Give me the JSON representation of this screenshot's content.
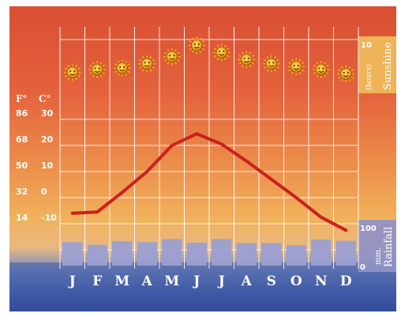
{
  "chart_data": {
    "type": "line",
    "categories": [
      "J",
      "F",
      "M",
      "A",
      "M",
      "J",
      "J",
      "A",
      "S",
      "O",
      "N",
      "D"
    ],
    "temperature": {
      "unit_fahrenheit": "F°",
      "unit_celsius": "C°",
      "fahrenheit_ticks": [
        "86",
        "68",
        "50",
        "32",
        "14"
      ],
      "celsius_ticks": [
        "30",
        "20",
        "10",
        "0",
        "-10"
      ],
      "ylim": [
        -10,
        30
      ],
      "values": [
        -6,
        -5.5,
        2,
        10,
        20,
        24.5,
        20.5,
        14,
        7,
        0,
        -7.5,
        -12.5
      ],
      "color": "#cc2020"
    },
    "sunshine": {
      "label": "Sunshine",
      "unit": "(hours)",
      "ticks": [
        "10",
        "0"
      ],
      "ylim": [
        0,
        10
      ],
      "values": [
        2.6,
        3.0,
        3.2,
        3.8,
        4.8,
        6.4,
        5.4,
        4.4,
        3.8,
        3.4,
        3.0,
        2.4
      ],
      "icon": "sun-icon"
    },
    "rainfall": {
      "label": "Rainfall",
      "unit": "mm.",
      "ticks": [
        "100",
        "0"
      ],
      "ylim": [
        0,
        100
      ],
      "values": [
        54,
        48,
        56,
        54,
        61,
        53,
        61,
        52,
        52,
        47,
        60,
        57
      ],
      "color": "#9b9fd2"
    },
    "grid": true
  }
}
